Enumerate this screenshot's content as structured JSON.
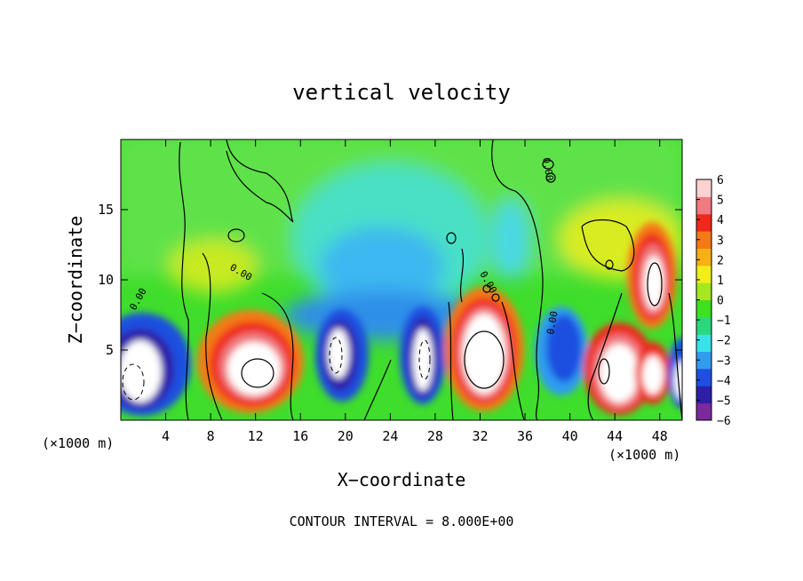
{
  "chart_data": {
    "type": "heatmap",
    "title": "vertical velocity",
    "xlabel": "X−coordinate",
    "ylabel": "Z−coordinate",
    "xunit_left": "(×1000 m)",
    "xunit_right": "(×1000 m)",
    "footer": "CONTOUR INTERVAL = 8.000E+00",
    "xlim": [
      0,
      50
    ],
    "ylim": [
      0,
      20
    ],
    "xticks": [
      4,
      8,
      12,
      16,
      20,
      24,
      28,
      32,
      36,
      40,
      44,
      48
    ],
    "yticks": [
      5,
      10,
      15
    ],
    "contour_labels": [
      "0.00",
      "0.00",
      "0.00",
      "0.00",
      "0.00"
    ],
    "colorbar": {
      "ticks": [
        6,
        5,
        4,
        3,
        2,
        1,
        0,
        -1,
        -2,
        -3,
        -4,
        -5,
        -6
      ],
      "tick_labels": [
        "6",
        "5",
        "4",
        "3",
        "2",
        "1",
        "0",
        "−1",
        "−2",
        "−3",
        "−4",
        "−5",
        "−6"
      ],
      "range": [
        -6,
        6
      ],
      "colors": [
        "#7a2a9a",
        "#2d1fa8",
        "#1f4fe0",
        "#2f9cf0",
        "#38e2e8",
        "#2bd77c",
        "#3ee022",
        "#a5e81f",
        "#f1ee1a",
        "#f7b016",
        "#f47a18",
        "#ef2a1c",
        "#f07a80",
        "#ffd2d2"
      ]
    },
    "features": [
      {
        "kind": "downdraft",
        "x": 2,
        "z": 4,
        "value": -8
      },
      {
        "kind": "updraft",
        "x": 11.5,
        "z": 4,
        "value": 10
      },
      {
        "kind": "downdraft",
        "x": 19,
        "z": 4,
        "value": -9
      },
      {
        "kind": "downdraft",
        "x": 26,
        "z": 3.8,
        "value": -9
      },
      {
        "kind": "updraft",
        "x": 32,
        "z": 4.5,
        "value": 11
      },
      {
        "kind": "downdraft",
        "x": 39,
        "z": 4,
        "value": -5
      },
      {
        "kind": "updraft",
        "x": 44,
        "z": 3.5,
        "value": 9
      },
      {
        "kind": "updraft",
        "x": 47,
        "z": 10,
        "value": 10
      },
      {
        "kind": "downdraft",
        "x": 49.5,
        "z": 3,
        "value": -6
      }
    ]
  }
}
